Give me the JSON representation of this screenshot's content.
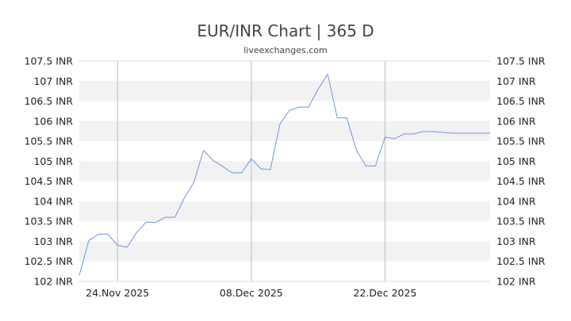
{
  "chart_data": {
    "type": "line",
    "title": "EUR/INR Chart | 365 D",
    "subtitle": "liveexchanges.com",
    "xlabel": "",
    "ylabel": "",
    "x_tick_labels": [
      "24.Nov 2025",
      "08.Dec 2025",
      "22.Dec 2025"
    ],
    "y_tick_labels": [
      "107.5 INR",
      "107 INR",
      "106.5 INR",
      "106 INR",
      "105.5 INR",
      "105 INR",
      "104.5 INR",
      "104 INR",
      "103.5 INR",
      "103 INR",
      "102.5 INR",
      "102 INR"
    ],
    "ylim": [
      102,
      107.5
    ],
    "xlim": [
      "2025-11-20",
      "2026-01-02"
    ],
    "grid": true,
    "line_color": "#6f94e0",
    "series": [
      {
        "x": [
          "2025-11-20",
          "2025-11-21",
          "2025-11-22",
          "2025-11-23",
          "2025-11-24",
          "2025-11-25",
          "2025-11-26",
          "2025-11-27",
          "2025-11-28",
          "2025-11-29",
          "2025-11-30",
          "2025-12-01",
          "2025-12-02",
          "2025-12-03",
          "2025-12-04",
          "2025-12-05",
          "2025-12-06",
          "2025-12-07",
          "2025-12-08",
          "2025-12-09",
          "2025-12-10",
          "2025-12-11",
          "2025-12-12",
          "2025-12-13",
          "2025-12-14",
          "2025-12-15",
          "2025-12-16",
          "2025-12-17",
          "2025-12-18",
          "2025-12-19",
          "2025-12-20",
          "2025-12-21",
          "2025-12-22",
          "2025-12-23",
          "2025-12-24",
          "2025-12-25",
          "2025-12-26",
          "2025-12-27",
          "2025-12-28",
          "2025-12-29",
          "2025-12-30",
          "2025-12-31",
          "2026-01-01",
          "2026-01-02"
        ],
        "values": [
          102.15,
          103.02,
          103.18,
          103.18,
          102.9,
          102.85,
          103.22,
          103.48,
          103.47,
          103.6,
          103.6,
          104.08,
          104.48,
          105.27,
          105.02,
          104.87,
          104.71,
          104.71,
          105.06,
          104.81,
          104.79,
          105.93,
          106.27,
          106.35,
          106.35,
          106.8,
          107.17,
          106.08,
          106.08,
          105.28,
          104.88,
          104.88,
          105.6,
          105.56,
          105.68,
          105.68,
          105.74,
          105.74,
          105.72,
          105.7,
          105.7,
          105.7,
          105.7,
          105.7
        ]
      }
    ]
  }
}
